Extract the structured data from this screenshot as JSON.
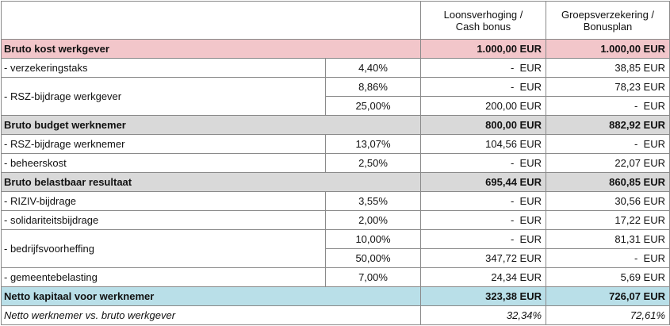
{
  "columns": {
    "loon": "Loonsverhoging /\nCash bonus",
    "groep": "Groepsverzekering /\nBonusplan"
  },
  "colors": {
    "pink": "#f2c6ca",
    "gray": "#d9d9d9",
    "blue": "#b9dfe8"
  },
  "rows": [
    {
      "type": "section",
      "color": "pink",
      "label": "Bruto kost werkgever",
      "loon": "1.000,00 EUR",
      "groep": "1.000,00 EUR"
    },
    {
      "type": "item",
      "label": "- verzekeringstaks",
      "lines": [
        {
          "pct": "4,40%",
          "loon": "-  EUR",
          "groep": "38,85 EUR"
        }
      ]
    },
    {
      "type": "item",
      "label": "- RSZ-bijdrage werkgever",
      "lines": [
        {
          "pct": "8,86%",
          "loon": "-  EUR",
          "groep": "78,23 EUR"
        },
        {
          "pct": "25,00%",
          "loon": "200,00 EUR",
          "groep": "-  EUR"
        }
      ]
    },
    {
      "type": "section",
      "color": "gray",
      "label": "Bruto budget werknemer",
      "loon": "800,00 EUR",
      "groep": "882,92 EUR"
    },
    {
      "type": "item",
      "label": "- RSZ-bijdrage werknemer",
      "lines": [
        {
          "pct": "13,07%",
          "loon": "104,56 EUR",
          "groep": "-  EUR"
        }
      ]
    },
    {
      "type": "item",
      "label": "- beheerskost",
      "lines": [
        {
          "pct": "2,50%",
          "loon": "-  EUR",
          "groep": "22,07 EUR"
        }
      ]
    },
    {
      "type": "section",
      "color": "gray",
      "label": "Bruto belastbaar resultaat",
      "loon": "695,44 EUR",
      "groep": "860,85 EUR"
    },
    {
      "type": "item",
      "label": "- RIZIV-bijdrage",
      "lines": [
        {
          "pct": "3,55%",
          "loon": "-  EUR",
          "groep": "30,56 EUR"
        }
      ]
    },
    {
      "type": "item",
      "label": "- solidariteitsbijdrage",
      "lines": [
        {
          "pct": "2,00%",
          "loon": "-  EUR",
          "groep": "17,22 EUR"
        }
      ]
    },
    {
      "type": "item",
      "label": "- bedrijfsvoorheffing",
      "lines": [
        {
          "pct": "10,00%",
          "loon": "-  EUR",
          "groep": "81,31 EUR"
        },
        {
          "pct": "50,00%",
          "loon": "347,72 EUR",
          "groep": "-  EUR"
        }
      ]
    },
    {
      "type": "item",
      "label": "- gemeentebelasting",
      "lines": [
        {
          "pct": "7,00%",
          "loon": "24,34 EUR",
          "groep": "5,69 EUR"
        }
      ]
    },
    {
      "type": "section",
      "color": "blue",
      "label": "Netto kapitaal voor werknemer",
      "loon": "323,38 EUR",
      "groep": "726,07 EUR"
    },
    {
      "type": "italic",
      "label": "Netto werknemer vs. bruto werkgever",
      "loon": "32,34%",
      "groep": "72,61%"
    }
  ]
}
